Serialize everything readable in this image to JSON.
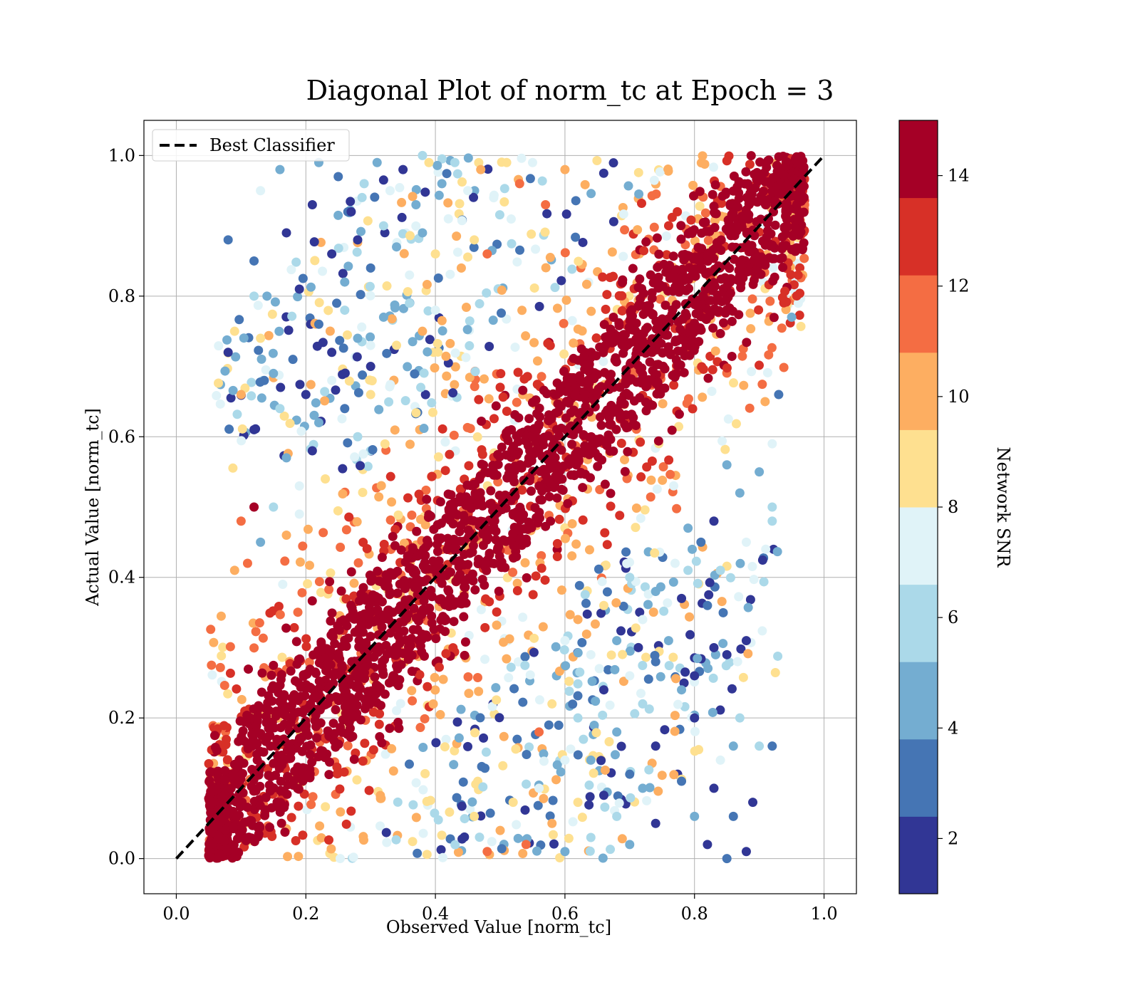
{
  "chart_data": {
    "type": "scatter",
    "title": "Diagonal Plot of norm_tc at Epoch = 3",
    "xlabel": "Observed Value [norm_tc]",
    "ylabel": "Actual Value [norm_tc]",
    "xlim": [
      -0.05,
      1.05
    ],
    "ylim": [
      -0.05,
      1.05
    ],
    "x_ticks": [
      0.0,
      0.2,
      0.4,
      0.6,
      0.8,
      1.0
    ],
    "y_ticks": [
      0.0,
      0.2,
      0.4,
      0.6,
      0.8,
      1.0
    ],
    "x_tick_labels": [
      "0.0",
      "0.2",
      "0.4",
      "0.6",
      "0.8",
      "1.0"
    ],
    "y_tick_labels": [
      "0.0",
      "0.2",
      "0.4",
      "0.6",
      "0.8",
      "1.0"
    ],
    "grid": true,
    "legend": {
      "placement": "upper-left",
      "entries": [
        "Best Classifier"
      ]
    },
    "reference_line": {
      "name": "Best Classifier",
      "style": "dashed",
      "color": "#000000",
      "x": [
        0.0,
        1.0
      ],
      "y": [
        0.0,
        1.0
      ]
    },
    "colorbar": {
      "label": "Network SNR",
      "range": [
        1,
        15
      ],
      "ticks": [
        2,
        4,
        6,
        8,
        10,
        12,
        14
      ],
      "tick_labels": [
        "2",
        "4",
        "6",
        "8",
        "10",
        "12",
        "14"
      ],
      "bands": [
        {
          "from": 1.0,
          "to": 2.4,
          "color": "#313695"
        },
        {
          "from": 2.4,
          "to": 3.8,
          "color": "#4575b4"
        },
        {
          "from": 3.8,
          "to": 5.2,
          "color": "#74add1"
        },
        {
          "from": 5.2,
          "to": 6.6,
          "color": "#abd9e9"
        },
        {
          "from": 6.6,
          "to": 8.0,
          "color": "#e0f3f8"
        },
        {
          "from": 8.0,
          "to": 9.4,
          "color": "#fee090"
        },
        {
          "from": 9.4,
          "to": 10.8,
          "color": "#fdae61"
        },
        {
          "from": 10.8,
          "to": 12.2,
          "color": "#f46d43"
        },
        {
          "from": 12.2,
          "to": 13.6,
          "color": "#d73027"
        },
        {
          "from": 13.6,
          "to": 15.0,
          "color": "#a50026"
        }
      ]
    },
    "point_colors": [
      "#313695",
      "#4575b4",
      "#74add1",
      "#abd9e9",
      "#e0f3f8",
      "#fee090",
      "#fdae61",
      "#f46d43",
      "#d73027",
      "#a50026"
    ],
    "scatter_points": [
      {
        "x": 0.08,
        "y": 0.88,
        "snr": 3
      },
      {
        "x": 0.08,
        "y": 0.72,
        "snr": 1.5
      },
      {
        "x": 0.09,
        "y": 0.75,
        "snr": 9
      },
      {
        "x": 0.1,
        "y": 0.66,
        "snr": 10
      },
      {
        "x": 0.12,
        "y": 0.61,
        "snr": 1.5
      },
      {
        "x": 0.12,
        "y": 0.85,
        "snr": 3
      },
      {
        "x": 0.13,
        "y": 0.95,
        "snr": 8
      },
      {
        "x": 0.16,
        "y": 0.98,
        "snr": 4
      },
      {
        "x": 0.17,
        "y": 0.89,
        "snr": 1.5
      },
      {
        "x": 0.14,
        "y": 0.8,
        "snr": 5
      },
      {
        "x": 0.12,
        "y": 0.8,
        "snr": 6
      },
      {
        "x": 0.13,
        "y": 0.74,
        "snr": 9
      },
      {
        "x": 0.15,
        "y": 0.69,
        "snr": 4
      },
      {
        "x": 0.16,
        "y": 0.64,
        "snr": 6
      },
      {
        "x": 0.18,
        "y": 0.71,
        "snr": 3
      },
      {
        "x": 0.19,
        "y": 0.81,
        "snr": 1.5
      },
      {
        "x": 0.21,
        "y": 0.93,
        "snr": 2
      },
      {
        "x": 0.22,
        "y": 0.99,
        "snr": 5
      },
      {
        "x": 0.25,
        "y": 0.97,
        "snr": 3
      },
      {
        "x": 0.27,
        "y": 0.92,
        "snr": 1.5
      },
      {
        "x": 0.29,
        "y": 0.96,
        "snr": 6
      },
      {
        "x": 0.31,
        "y": 0.99,
        "snr": 4
      },
      {
        "x": 0.33,
        "y": 0.95,
        "snr": 7
      },
      {
        "x": 0.35,
        "y": 0.98,
        "snr": 2
      },
      {
        "x": 0.37,
        "y": 0.93,
        "snr": 5
      },
      {
        "x": 0.39,
        "y": 0.99,
        "snr": 9
      },
      {
        "x": 0.41,
        "y": 0.96,
        "snr": 4
      },
      {
        "x": 0.43,
        "y": 0.99,
        "snr": 6
      },
      {
        "x": 0.45,
        "y": 0.95,
        "snr": 8
      },
      {
        "x": 0.47,
        "y": 0.98,
        "snr": 10
      },
      {
        "x": 0.49,
        "y": 0.94,
        "snr": 7
      },
      {
        "x": 0.51,
        "y": 0.99,
        "snr": 9
      },
      {
        "x": 0.53,
        "y": 0.96,
        "snr": 11
      },
      {
        "x": 0.55,
        "y": 0.99,
        "snr": 8
      },
      {
        "x": 0.57,
        "y": 0.93,
        "snr": 12
      },
      {
        "x": 0.6,
        "y": 0.98,
        "snr": 10
      },
      {
        "x": 0.24,
        "y": 0.86,
        "snr": 2
      },
      {
        "x": 0.26,
        "y": 0.82,
        "snr": 5
      },
      {
        "x": 0.28,
        "y": 0.88,
        "snr": 1.5
      },
      {
        "x": 0.3,
        "y": 0.84,
        "snr": 3
      },
      {
        "x": 0.32,
        "y": 0.9,
        "snr": 6
      },
      {
        "x": 0.34,
        "y": 0.87,
        "snr": 4
      },
      {
        "x": 0.36,
        "y": 0.83,
        "snr": 8
      },
      {
        "x": 0.38,
        "y": 0.89,
        "snr": 5
      },
      {
        "x": 0.4,
        "y": 0.86,
        "snr": 9
      },
      {
        "x": 0.42,
        "y": 0.91,
        "snr": 7
      },
      {
        "x": 0.44,
        "y": 0.84,
        "snr": 10
      },
      {
        "x": 0.46,
        "y": 0.88,
        "snr": 9
      },
      {
        "x": 0.48,
        "y": 0.86,
        "snr": 12
      },
      {
        "x": 0.22,
        "y": 0.76,
        "snr": 3
      },
      {
        "x": 0.24,
        "y": 0.72,
        "snr": 1.5
      },
      {
        "x": 0.26,
        "y": 0.78,
        "snr": 6
      },
      {
        "x": 0.28,
        "y": 0.74,
        "snr": 4
      },
      {
        "x": 0.3,
        "y": 0.7,
        "snr": 2
      },
      {
        "x": 0.32,
        "y": 0.77,
        "snr": 5
      },
      {
        "x": 0.34,
        "y": 0.73,
        "snr": 9
      },
      {
        "x": 0.36,
        "y": 0.79,
        "snr": 6
      },
      {
        "x": 0.38,
        "y": 0.75,
        "snr": 10
      },
      {
        "x": 0.4,
        "y": 0.78,
        "snr": 8
      },
      {
        "x": 0.2,
        "y": 0.66,
        "snr": 2
      },
      {
        "x": 0.22,
        "y": 0.62,
        "snr": 5
      },
      {
        "x": 0.24,
        "y": 0.68,
        "snr": 8
      },
      {
        "x": 0.26,
        "y": 0.64,
        "snr": 3
      },
      {
        "x": 0.28,
        "y": 0.6,
        "snr": 6
      },
      {
        "x": 0.3,
        "y": 0.66,
        "snr": 9
      },
      {
        "x": 0.17,
        "y": 0.57,
        "snr": 4
      },
      {
        "x": 0.19,
        "y": 0.53,
        "snr": 7
      },
      {
        "x": 0.21,
        "y": 0.58,
        "snr": 2
      },
      {
        "x": 0.23,
        "y": 0.54,
        "snr": 9
      },
      {
        "x": 0.15,
        "y": 0.5,
        "snr": 6
      },
      {
        "x": 0.17,
        "y": 0.46,
        "snr": 10
      },
      {
        "x": 0.19,
        "y": 0.49,
        "snr": 8
      },
      {
        "x": 0.1,
        "y": 0.48,
        "snr": 12
      },
      {
        "x": 0.12,
        "y": 0.5,
        "snr": 14
      },
      {
        "x": 0.09,
        "y": 0.41,
        "snr": 10
      },
      {
        "x": 0.11,
        "y": 0.42,
        "snr": 12
      },
      {
        "x": 0.13,
        "y": 0.45,
        "snr": 5
      },
      {
        "x": 0.97,
        "y": 0.93,
        "snr": 12
      },
      {
        "x": 0.96,
        "y": 0.83,
        "snr": 13
      },
      {
        "x": 0.95,
        "y": 0.77,
        "snr": 5
      },
      {
        "x": 0.93,
        "y": 0.66,
        "snr": 3
      },
      {
        "x": 0.92,
        "y": 0.59,
        "snr": 8
      },
      {
        "x": 0.9,
        "y": 0.55,
        "snr": 5
      },
      {
        "x": 0.92,
        "y": 0.5,
        "snr": 6
      },
      {
        "x": 0.92,
        "y": 0.48,
        "snr": 6
      },
      {
        "x": 0.91,
        "y": 0.44,
        "snr": 7
      },
      {
        "x": 0.88,
        "y": 0.45,
        "snr": 8
      },
      {
        "x": 0.87,
        "y": 0.52,
        "snr": 5
      },
      {
        "x": 0.85,
        "y": 0.56,
        "snr": 4
      },
      {
        "x": 0.83,
        "y": 0.48,
        "snr": 1.5
      },
      {
        "x": 0.84,
        "y": 0.41,
        "snr": 6
      },
      {
        "x": 0.82,
        "y": 0.36,
        "snr": 3
      },
      {
        "x": 0.83,
        "y": 0.3,
        "snr": 1.5
      },
      {
        "x": 0.85,
        "y": 0.29,
        "snr": 2
      },
      {
        "x": 0.88,
        "y": 0.31,
        "snr": 1.5
      },
      {
        "x": 0.87,
        "y": 0.2,
        "snr": 6
      },
      {
        "x": 0.9,
        "y": 0.16,
        "snr": 6
      },
      {
        "x": 0.92,
        "y": 0.16,
        "snr": 3
      },
      {
        "x": 0.86,
        "y": 0.16,
        "snr": 4
      },
      {
        "x": 0.84,
        "y": 0.14,
        "snr": 7
      },
      {
        "x": 0.83,
        "y": 0.1,
        "snr": 2
      },
      {
        "x": 0.86,
        "y": 0.06,
        "snr": 3
      },
      {
        "x": 0.88,
        "y": 0.01,
        "snr": 1.5
      },
      {
        "x": 0.85,
        "y": 0.0,
        "snr": 3
      },
      {
        "x": 0.89,
        "y": 0.08,
        "snr": 2
      },
      {
        "x": 0.82,
        "y": 0.02,
        "snr": 2
      },
      {
        "x": 0.8,
        "y": 0.06,
        "snr": 4
      },
      {
        "x": 0.78,
        "y": 0.11,
        "snr": 3
      },
      {
        "x": 0.8,
        "y": 0.2,
        "snr": 2
      },
      {
        "x": 0.78,
        "y": 0.24,
        "snr": 5
      },
      {
        "x": 0.8,
        "y": 0.26,
        "snr": 1.5
      },
      {
        "x": 0.76,
        "y": 0.31,
        "snr": 4
      },
      {
        "x": 0.78,
        "y": 0.37,
        "snr": 2
      },
      {
        "x": 0.79,
        "y": 0.41,
        "snr": 6
      },
      {
        "x": 0.81,
        "y": 0.45,
        "snr": 3
      },
      {
        "x": 0.79,
        "y": 0.47,
        "snr": 5
      },
      {
        "x": 0.77,
        "y": 0.42,
        "snr": 7
      },
      {
        "x": 0.74,
        "y": 0.38,
        "snr": 5
      },
      {
        "x": 0.72,
        "y": 0.34,
        "snr": 8
      },
      {
        "x": 0.74,
        "y": 0.28,
        "snr": 3
      },
      {
        "x": 0.72,
        "y": 0.22,
        "snr": 6
      },
      {
        "x": 0.74,
        "y": 0.16,
        "snr": 2
      },
      {
        "x": 0.72,
        "y": 0.1,
        "snr": 5
      },
      {
        "x": 0.74,
        "y": 0.05,
        "snr": 1.5
      },
      {
        "x": 0.7,
        "y": 0.02,
        "snr": 4
      },
      {
        "x": 0.68,
        "y": 0.06,
        "snr": 6
      },
      {
        "x": 0.7,
        "y": 0.12,
        "snr": 3
      },
      {
        "x": 0.68,
        "y": 0.18,
        "snr": 5
      },
      {
        "x": 0.7,
        "y": 0.26,
        "snr": 7
      },
      {
        "x": 0.68,
        "y": 0.31,
        "snr": 4
      },
      {
        "x": 0.66,
        "y": 0.36,
        "snr": 9
      },
      {
        "x": 0.7,
        "y": 0.4,
        "snr": 6
      },
      {
        "x": 0.66,
        "y": 0.24,
        "snr": 2
      },
      {
        "x": 0.64,
        "y": 0.29,
        "snr": 8
      },
      {
        "x": 0.64,
        "y": 0.14,
        "snr": 4
      },
      {
        "x": 0.66,
        "y": 0.09,
        "snr": 1.5
      },
      {
        "x": 0.64,
        "y": 0.03,
        "snr": 6
      },
      {
        "x": 0.62,
        "y": 0.08,
        "snr": 9
      },
      {
        "x": 0.6,
        "y": 0.01,
        "snr": 5
      },
      {
        "x": 0.62,
        "y": 0.2,
        "snr": 6
      },
      {
        "x": 0.6,
        "y": 0.14,
        "snr": 8
      },
      {
        "x": 0.58,
        "y": 0.05,
        "snr": 10
      },
      {
        "x": 0.56,
        "y": 0.1,
        "snr": 7
      },
      {
        "x": 0.58,
        "y": 0.22,
        "snr": 9
      },
      {
        "x": 0.54,
        "y": 0.02,
        "snr": 11
      },
      {
        "x": 0.52,
        "y": 0.08,
        "snr": 9
      },
      {
        "x": 0.6,
        "y": 0.31,
        "snr": 7
      },
      {
        "x": 0.62,
        "y": 0.34,
        "snr": 10
      },
      {
        "x": 0.56,
        "y": 0.18,
        "snr": 12
      },
      {
        "x": 0.5,
        "y": 0.04,
        "snr": 10
      },
      {
        "x": 0.48,
        "y": 0.01,
        "snr": 12
      },
      {
        "x": 0.46,
        "y": 0.06,
        "snr": 9
      }
    ],
    "scatter_bands": [
      {
        "center_offset": 0.0,
        "width": 0.1,
        "snr_range": [
          13.6,
          15.0
        ],
        "count": 900
      },
      {
        "center_offset": 0.0,
        "width": 0.16,
        "snr_range": [
          12.2,
          15.0
        ],
        "count": 500
      },
      {
        "center_offset": 0.0,
        "width": 0.22,
        "snr_range": [
          9.4,
          13.6
        ],
        "count": 420
      },
      {
        "center_offset": 0.0,
        "width": 0.28,
        "snr_range": [
          6.6,
          12.2
        ],
        "count": 360
      }
    ]
  }
}
